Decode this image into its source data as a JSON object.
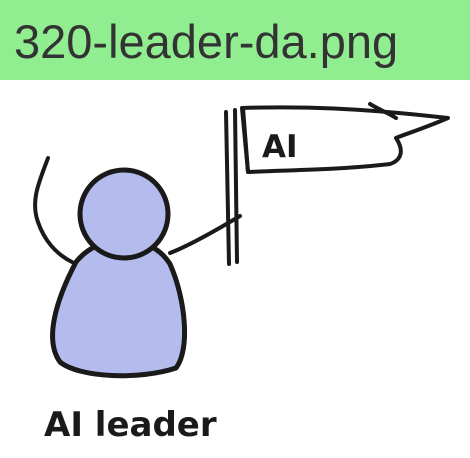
{
  "header": {
    "filename": "320-leader-da.png",
    "background_color": "#90ee90"
  },
  "illustration": {
    "flag_text": "AI",
    "caption": "AI leader",
    "figure_color": "#b4bcee",
    "icons": [
      "person-figure",
      "pennant-flag"
    ]
  }
}
